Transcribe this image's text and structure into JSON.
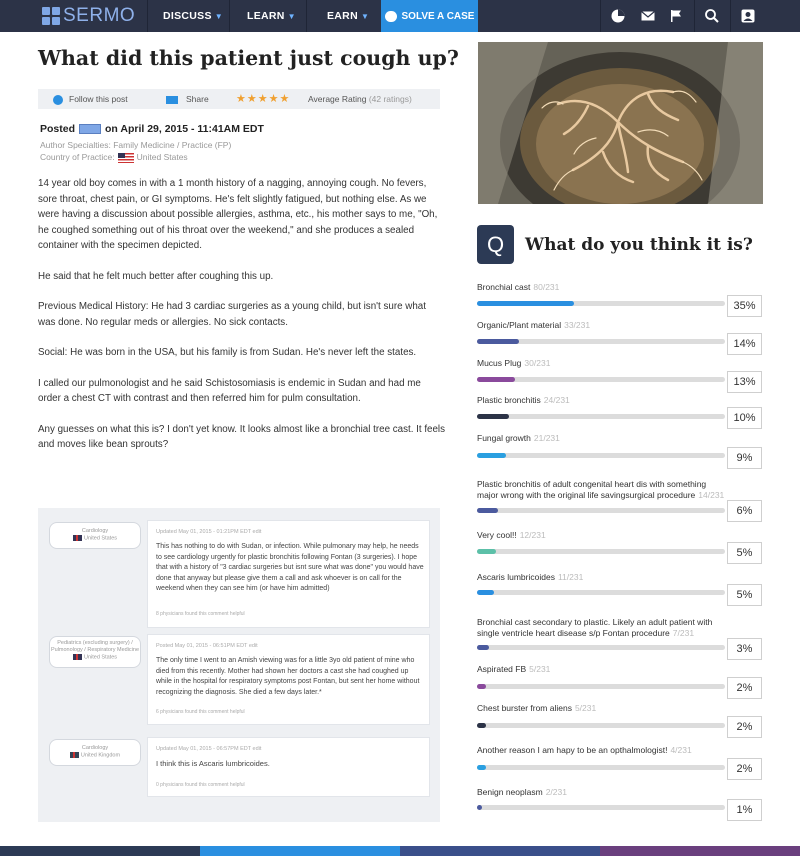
{
  "nav": {
    "logo": "SERMO",
    "items": [
      {
        "label": "DISCUSS"
      },
      {
        "label": "LEARN"
      },
      {
        "label": "EARN"
      }
    ],
    "cta": "SOLVE A CASE",
    "icons": [
      "pie-chart-icon",
      "mail-icon",
      "flag-icon",
      "search-icon",
      "user-icon"
    ]
  },
  "post": {
    "title": "What did this patient just cough up?",
    "toolbar": {
      "follow": "Follow this post",
      "share": "Share",
      "stars": "★★★★★",
      "rating_label": "Average Rating",
      "rating_count": "(42 ratings)"
    },
    "posted_prefix": "Posted",
    "posted_date": "on April 29, 2015 - 11:41AM EDT",
    "specialties": "Author Specialties: Family Medicine / Practice (FP)",
    "country_label": "Country of Practice:",
    "country": "United States",
    "paragraphs": [
      "14 year old boy comes in with a 1 month history of a nagging, annoying cough. No fevers, sore throat, chest pain, or GI symptoms. He's felt slightly fatigued, but nothing else. As we were having a discussion about possible allergies, asthma, etc., his mother says to me, \"Oh, he coughed something out of his throat over the weekend,\" and she produces a sealed container with the specimen depicted.",
      "He said that he felt much better after coughing this up.",
      "Previous Medical History: He had 3 cardiac surgeries as a young child, but isn't sure what was done. No regular meds or allergies. No sick contacts.",
      "Social: He was born in the USA, but his family is from Sudan. He's never left the states.",
      "I called our pulmonologist and he said Schistosomiasis is endemic in Sudan and had me order a chest CT with contrast and then referred him for pulm consultation.",
      "Any guesses on what this is? I don't yet know. It looks almost like a bronchial tree cast. It feels and moves like bean sprouts?"
    ]
  },
  "comments": [
    {
      "specialty": "Cardiology",
      "country": "United States",
      "date": "Updated May 01, 2015 - 01:21PM EDT   edit",
      "text": "This has nothing to do with Sudan, or infection. While pulmonary may help, he needs to see cardiology urgently for plastic bronchitis following Fontan (3 surgeries). I hope that with a history of \"3 cardiac surgeries but isnt sure what was done\" you would have done that anyway but please give them a call and ask whoever is on call for the weekend when they can see him (or have him admitted)",
      "helpful": "8 physicians found this comment helpful"
    },
    {
      "specialty": "Pediatrics (excluding surgery) / Pulmonology / Respiratory Medicine",
      "country": "United States",
      "date": "Posted May 01, 2015 - 06:51PM EDT   edit",
      "text": "The only time I went to an Amish viewing was for a little 3yo old patient of mine who died from this recently. Mother had shown her doctors a cast she had coughed up while in the hospital for respiratory symptoms post Fontan, but sent her home without recognizing the diagnosis. She died a few days later.*",
      "helpful": "6 physicians found this comment helpful"
    },
    {
      "specialty": "Cardiology",
      "country": "United Kingdom",
      "date": "Updated May 01, 2015 - 06:57PM EDT   edit",
      "text": "I think this is Ascaris lumbricoides.",
      "helpful": "0 physicians found this comment helpful"
    }
  ],
  "poll": {
    "badge": "Q",
    "title": "What do you think it is?",
    "options": [
      {
        "label": "Bronchial cast",
        "count": "80/231",
        "percent": "35%",
        "fill": 0.39,
        "color": "#2a8fe0"
      },
      {
        "label": "Organic/Plant material",
        "count": "33/231",
        "percent": "14%",
        "fill": 0.17,
        "color": "#4b5a9e"
      },
      {
        "label": "Mucus Plug",
        "count": "30/231",
        "percent": "13%",
        "fill": 0.155,
        "color": "#8a4a9c"
      },
      {
        "label": "Plastic bronchitis",
        "count": "24/231",
        "percent": "10%",
        "fill": 0.13,
        "color": "#2c3347"
      },
      {
        "label": "Fungal growth",
        "count": "21/231",
        "percent": "9%",
        "fill": 0.115,
        "color": "#2a9fe0"
      },
      {
        "label": "Plastic bronchitis of adult congenital heart dis with something major wrong with the original life savingsurgical procedure",
        "count": "14/231",
        "percent": "6%",
        "fill": 0.085,
        "color": "#4b5a9e"
      },
      {
        "label": "Very cool!!",
        "count": "12/231",
        "percent": "5%",
        "fill": 0.075,
        "color": "#5cc0a8"
      },
      {
        "label": "Ascaris lumbricoides",
        "count": "11/231",
        "percent": "5%",
        "fill": 0.07,
        "color": "#2a8fe0"
      },
      {
        "label": "Bronchial cast secondary to plastic. Likely an adult patient with single ventricle heart disease s/p Fontan procedure",
        "count": "7/231",
        "percent": "3%",
        "fill": 0.05,
        "color": "#4b5a9e"
      },
      {
        "label": "Aspirated FB",
        "count": "5/231",
        "percent": "2%",
        "fill": 0.035,
        "color": "#8a4a9c"
      },
      {
        "label": "Chest burster from aliens",
        "count": "5/231",
        "percent": "2%",
        "fill": 0.035,
        "color": "#2c3347"
      },
      {
        "label": "Another reason I am hapy to be an opthalmologist!",
        "count": "4/231",
        "percent": "2%",
        "fill": 0.035,
        "color": "#2a9fe0"
      },
      {
        "label": "Benign neoplasm",
        "count": "2/231",
        "percent": "1%",
        "fill": 0.02,
        "color": "#4b5a9e"
      }
    ]
  },
  "footer_colors": [
    "#2c3a55",
    "#2a8fe0",
    "#3a4f8a",
    "#6a3f7e"
  ]
}
